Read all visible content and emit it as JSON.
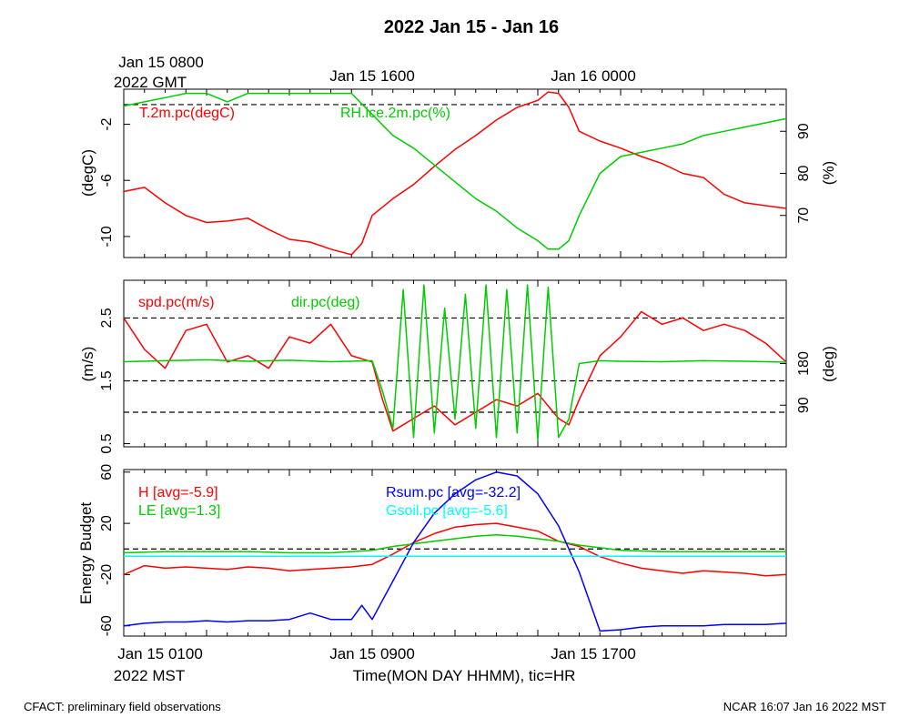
{
  "title": "2022 Jan 15 - Jan 16",
  "top_axis": {
    "labels": [
      "Jan 15 0800",
      "Jan 15 1600",
      "Jan 16 0000"
    ],
    "year_label": "2022 GMT"
  },
  "bottom_axis": {
    "labels": [
      "Jan 15 0100",
      "Jan 15 0900",
      "Jan 15 1700"
    ],
    "year_label": "2022 MST",
    "xlabel": "Time(MON DAY HHMM), tic=HR"
  },
  "footer": {
    "left": "CFACT: preliminary field observations",
    "right": "NCAR 16:07 Jan 16 2022 MST"
  },
  "colors": {
    "red": "#ff0000",
    "green": "#00cc00",
    "blue": "#0000ff",
    "cyan": "#00ffff",
    "black": "#000000"
  },
  "chart_data": [
    {
      "type": "line",
      "x_range_hours": [
        0,
        32
      ],
      "panel": "temperature-humidity",
      "ylabel_left": "(degC)",
      "ylabel_right": "(%)",
      "left_ticks": [
        "-2",
        "-6",
        "-10"
      ],
      "right_ticks": [
        "90",
        "80",
        "70"
      ],
      "left_ylim": [
        -11.5,
        0.5
      ],
      "right_ylim": [
        60,
        100
      ],
      "reference_line_left": -0.6,
      "series": [
        {
          "name": "T.2m.pc(degC)",
          "axis": "left",
          "color": "red",
          "x": [
            0,
            1,
            2,
            3,
            4,
            5,
            6,
            7,
            8,
            9,
            10,
            11,
            11.5,
            12,
            13,
            14,
            15,
            16,
            17,
            18,
            19,
            20,
            20.5,
            21,
            21.5,
            22,
            23,
            24,
            25,
            26,
            27,
            28,
            29,
            30,
            31,
            32
          ],
          "values": [
            -6.8,
            -6.5,
            -7.6,
            -8.5,
            -9.0,
            -8.9,
            -8.7,
            -9.5,
            -10.2,
            -10.4,
            -10.9,
            -11.3,
            -10.5,
            -8.5,
            -7.3,
            -6.3,
            -5.0,
            -3.8,
            -2.8,
            -1.7,
            -0.8,
            -0.3,
            0.3,
            0.2,
            -0.8,
            -2.5,
            -3.2,
            -3.7,
            -4.3,
            -4.8,
            -5.5,
            -5.8,
            -7.0,
            -7.6,
            -7.8,
            -8.0
          ]
        },
        {
          "name": "RH.ice.2m.pc(%)",
          "axis": "right",
          "color": "green",
          "x": [
            0,
            1,
            2,
            3,
            4,
            5,
            6,
            7,
            8,
            9,
            10,
            11,
            12,
            13,
            14,
            15,
            16,
            17,
            18,
            19,
            20,
            20.5,
            21,
            21.5,
            22,
            23,
            24,
            25,
            26,
            27,
            28,
            29,
            30,
            31,
            32
          ],
          "values": [
            96,
            97,
            98,
            99,
            99,
            97,
            99,
            99,
            99,
            99,
            99,
            99,
            94,
            89,
            86,
            82,
            78,
            74,
            71,
            67,
            64,
            62,
            62,
            64,
            70,
            80,
            84,
            85,
            86,
            87,
            89,
            90,
            91,
            92,
            93
          ]
        }
      ]
    },
    {
      "type": "line",
      "x_range_hours": [
        0,
        32
      ],
      "panel": "wind",
      "ylabel_left": "(m/s)",
      "ylabel_right": "(deg)",
      "left_ticks": [
        "2.5",
        "1.5",
        "0.5"
      ],
      "right_ticks": [
        "180",
        "90"
      ],
      "left_ylim": [
        0.45,
        3.1
      ],
      "right_ylim": [
        0,
        360
      ],
      "reference_lines_left": [
        2.5,
        1.5,
        1.0
      ],
      "series": [
        {
          "name": "spd.pc(m/s)",
          "axis": "left",
          "color": "red",
          "x": [
            0,
            1,
            2,
            3,
            4,
            5,
            6,
            7,
            8,
            9,
            10,
            11,
            12,
            12.5,
            13,
            14,
            15,
            16,
            17,
            18,
            19,
            20,
            21,
            21.5,
            22,
            23,
            24,
            25,
            26,
            27,
            28,
            29,
            30,
            31,
            32
          ],
          "values": [
            2.5,
            2.0,
            1.7,
            2.3,
            2.4,
            1.8,
            1.9,
            1.7,
            2.2,
            2.1,
            2.4,
            1.9,
            1.8,
            1.2,
            0.7,
            0.9,
            1.1,
            0.8,
            1.0,
            1.2,
            1.1,
            1.3,
            0.9,
            0.8,
            1.2,
            1.9,
            2.2,
            2.6,
            2.4,
            2.5,
            2.3,
            2.4,
            2.3,
            2.1,
            1.8
          ]
        },
        {
          "name": "dir.pc(deg)",
          "axis": "right",
          "color": "green",
          "x": [
            0,
            2,
            4,
            6,
            8,
            10,
            12,
            12.5,
            13,
            13.5,
            14,
            14.5,
            15,
            15.5,
            16,
            16.5,
            17,
            17.5,
            18,
            18.5,
            19,
            19.5,
            20,
            20.5,
            21,
            21.5,
            22,
            23,
            24,
            26,
            28,
            30,
            32
          ],
          "values": [
            184,
            186,
            188,
            185,
            187,
            184,
            186,
            120,
            40,
            340,
            20,
            350,
            30,
            300,
            60,
            330,
            40,
            350,
            20,
            340,
            30,
            350,
            15,
            345,
            20,
            60,
            180,
            186,
            185,
            184,
            186,
            185,
            183
          ]
        }
      ]
    },
    {
      "type": "line",
      "x_range_hours": [
        0,
        32
      ],
      "panel": "energy-budget",
      "ylabel_left": "Energy Budget",
      "left_ticks": [
        "60",
        "20",
        "-20",
        "-60"
      ],
      "left_ylim": [
        -68,
        62
      ],
      "reference_line_left": 0,
      "series": [
        {
          "name": "H [avg=-5.9]",
          "color": "red",
          "x": [
            0,
            1,
            2,
            3,
            4,
            5,
            6,
            7,
            8,
            9,
            10,
            11,
            12,
            13,
            14,
            15,
            16,
            17,
            18,
            19,
            20,
            21,
            22,
            23,
            24,
            25,
            26,
            27,
            28,
            29,
            30,
            31,
            32
          ],
          "values": [
            -20,
            -13,
            -15,
            -14,
            -15,
            -16,
            -14,
            -15,
            -17,
            -16,
            -15,
            -14,
            -12,
            -4,
            5,
            12,
            17,
            19,
            20,
            17,
            14,
            6,
            2,
            -6,
            -11,
            -15,
            -17,
            -19,
            -17,
            -18,
            -19,
            -21,
            -20
          ]
        },
        {
          "name": "LE [avg=1.3]",
          "color": "green",
          "x": [
            0,
            2,
            4,
            6,
            8,
            10,
            11,
            12,
            13,
            14,
            15,
            16,
            17,
            18,
            19,
            20,
            21,
            22,
            23,
            24,
            26,
            28,
            30,
            32
          ],
          "values": [
            -3,
            -2,
            -2,
            -2,
            -3,
            -3,
            -2,
            -1,
            2,
            4,
            6,
            8,
            10,
            11,
            10,
            8,
            6,
            3,
            1,
            -1,
            -2,
            -2,
            -2,
            -2
          ]
        },
        {
          "name": "Rsum.pc [avg=-32.2]",
          "color": "blue",
          "x": [
            0,
            1,
            2,
            3,
            4,
            5,
            6,
            7,
            8,
            9,
            10,
            11,
            11.5,
            12,
            13,
            14,
            15,
            16,
            17,
            18,
            19,
            20,
            21,
            22,
            23,
            24,
            25,
            26,
            27,
            28,
            29,
            30,
            31,
            32
          ],
          "values": [
            -60,
            -58,
            -57,
            -57,
            -56,
            -57,
            -56,
            -56,
            -55,
            -50,
            -55,
            -55,
            -44,
            -55,
            -25,
            5,
            28,
            43,
            54,
            60,
            57,
            43,
            18,
            -18,
            -64,
            -63,
            -61,
            -60,
            -60,
            -60,
            -59,
            -59,
            -59,
            -58
          ]
        },
        {
          "name": "Gsoil.pc [avg=-5.6]",
          "color": "cyan",
          "x": [
            0,
            32
          ],
          "values": [
            -5.6,
            -5.6
          ]
        }
      ]
    }
  ]
}
